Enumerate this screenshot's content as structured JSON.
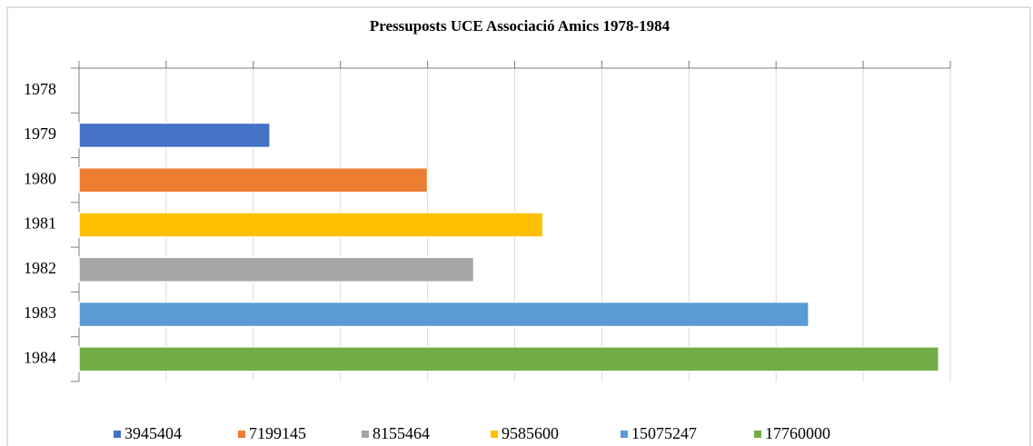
{
  "chart_data": {
    "type": "bar",
    "orientation": "horizontal",
    "title": "Pressuposts UCE Associació Amics 1978-1984",
    "categories": [
      "1978",
      "1979",
      "1980",
      "1981",
      "1982",
      "1983",
      "1984"
    ],
    "series": [
      {
        "name": "3945404",
        "color": "#4472c4",
        "values": [
          null,
          3945404,
          null,
          null,
          null,
          null,
          null
        ]
      },
      {
        "name": "7199145",
        "color": "#ed7d31",
        "values": [
          null,
          null,
          7199145,
          null,
          null,
          null,
          null
        ]
      },
      {
        "name": "8155464",
        "color": "#a5a5a5",
        "values": [
          null,
          null,
          null,
          null,
          8155464,
          null,
          null
        ]
      },
      {
        "name": "9585600",
        "color": "#ffc000",
        "values": [
          null,
          null,
          null,
          9585600,
          null,
          null,
          null
        ]
      },
      {
        "name": "15075247",
        "color": "#5b9bd5",
        "values": [
          null,
          null,
          null,
          null,
          null,
          15075247,
          null
        ]
      },
      {
        "name": "17760000",
        "color": "#70ad47",
        "values": [
          null,
          null,
          null,
          null,
          null,
          null,
          17760000
        ]
      }
    ],
    "xlim": [
      0,
      18000000
    ],
    "xticks": [
      0,
      1800000,
      3600000,
      5400000,
      7200000,
      9000000,
      10800000,
      12600000,
      14400000,
      16200000,
      18000000
    ],
    "grid": true,
    "legend": "bottom"
  }
}
